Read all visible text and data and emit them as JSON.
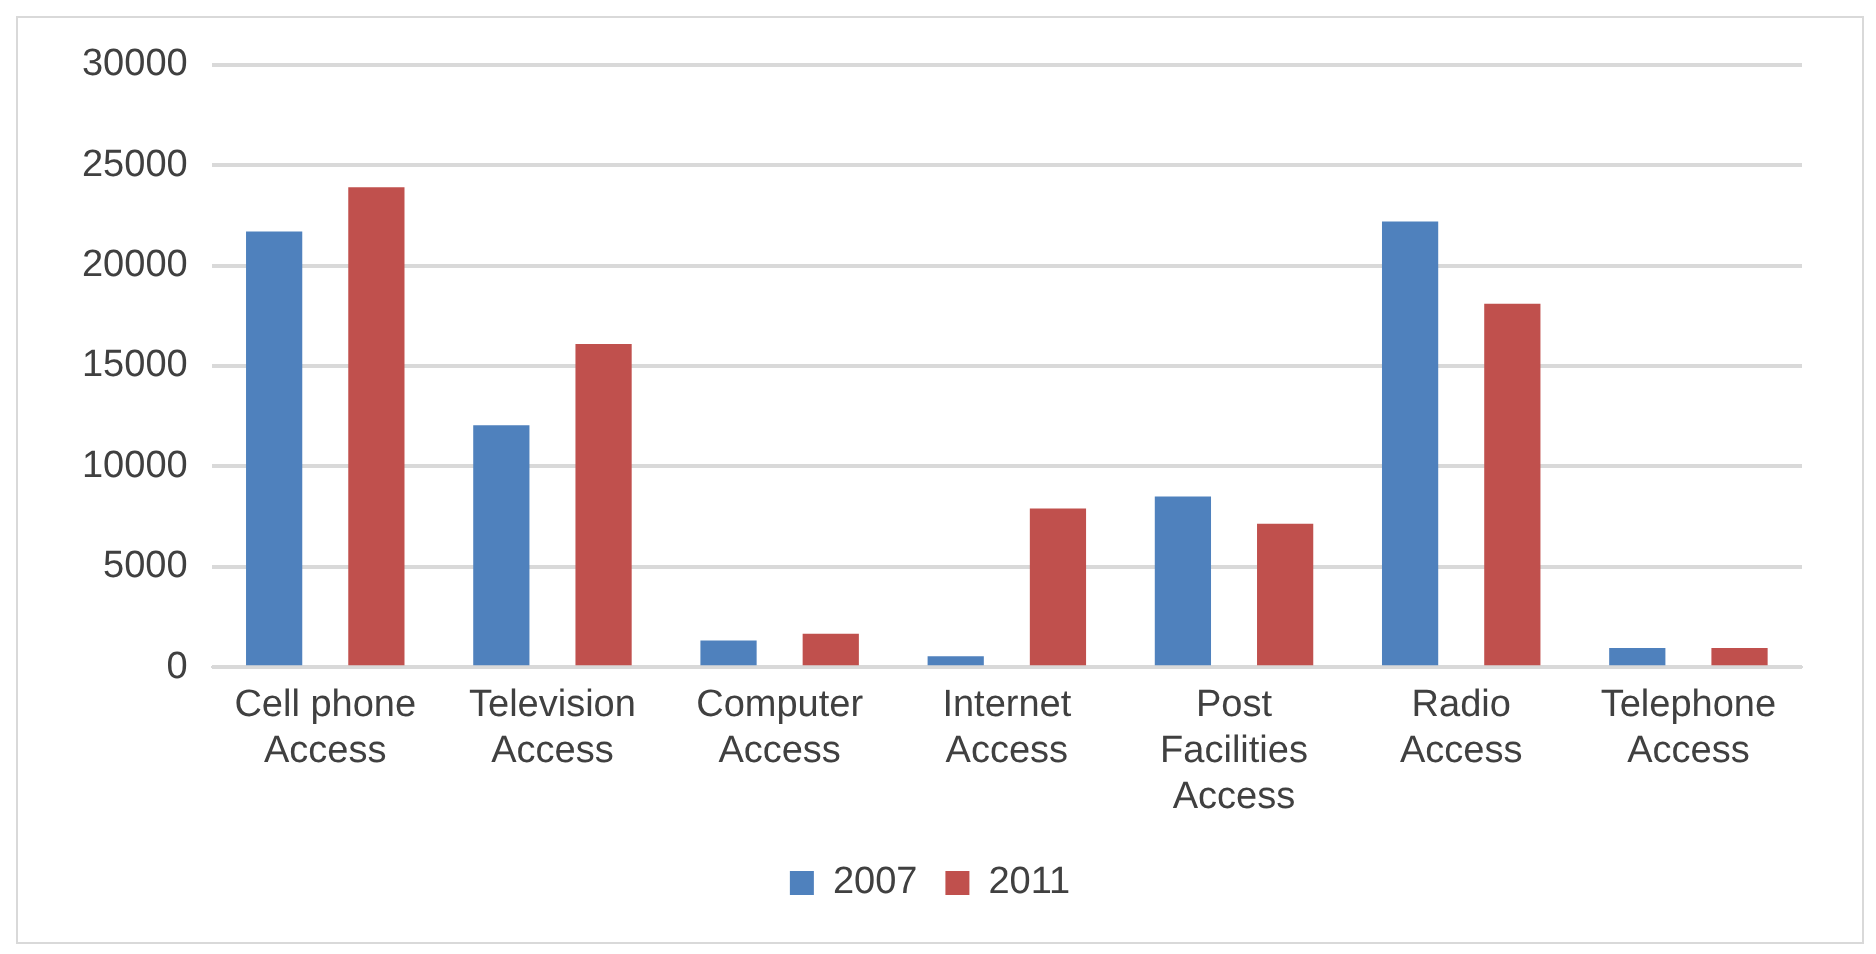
{
  "chart_data": {
    "type": "bar",
    "categories": [
      "Cell phone Access",
      "Television Access",
      "Computer Access",
      "Internet Access",
      "Post Facilities Access",
      "Radio Access",
      "Telephone Access"
    ],
    "series": [
      {
        "name": "2007",
        "color": "#4f81bd",
        "values": [
          21700,
          12050,
          1330,
          540,
          8500,
          22200,
          960
        ]
      },
      {
        "name": "2011",
        "color": "#c0504d",
        "values": [
          23900,
          16100,
          1660,
          7900,
          7150,
          18100,
          960
        ]
      }
    ],
    "ylim": [
      0,
      30000
    ],
    "yticks": [
      0,
      5000,
      10000,
      15000,
      20000,
      25000,
      30000
    ],
    "grid": "y",
    "legend": "bottom"
  }
}
